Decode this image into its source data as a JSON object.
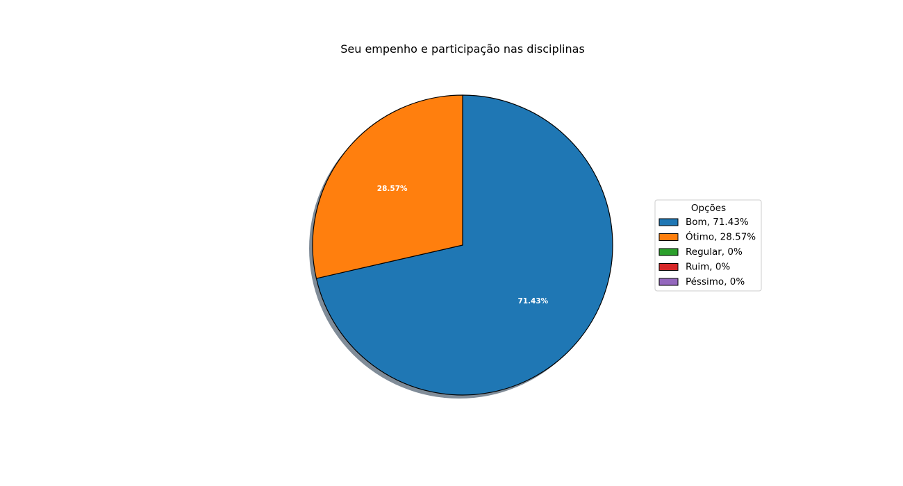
{
  "chart_data": {
    "type": "pie",
    "title": "Seu empenho e participação nas disciplinas",
    "slices": [
      {
        "label": "Bom",
        "value": 71.43,
        "color": "#1f77b4",
        "autopct": "71.43%",
        "legend": "Bom, 71.43%"
      },
      {
        "label": "Ótimo",
        "value": 28.57,
        "color": "#ff7f0e",
        "autopct": "28.57%",
        "legend": "Ótimo, 28.57%"
      },
      {
        "label": "Regular",
        "value": 0,
        "color": "#2ca02c",
        "autopct": "",
        "legend": "Regular, 0%"
      },
      {
        "label": "Ruim",
        "value": 0,
        "color": "#d62728",
        "autopct": "",
        "legend": "Ruim, 0%"
      },
      {
        "label": "Péssimo",
        "value": 0,
        "color": "#9467bd",
        "autopct": "",
        "legend": "Péssimo, 0%"
      }
    ],
    "legend": {
      "title": "Opções",
      "placement": "right"
    },
    "shadow": true,
    "start_angle_deg": 90,
    "direction": "clockwise"
  }
}
